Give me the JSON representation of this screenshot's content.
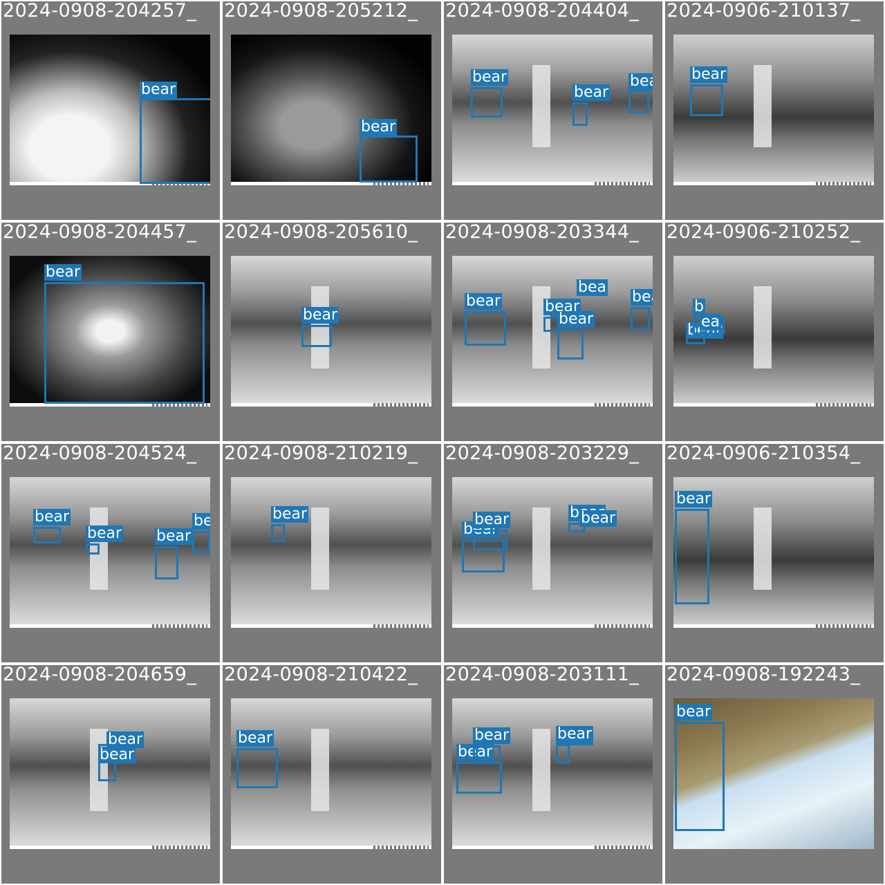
{
  "colors": {
    "tile_background": "#7a7a7a",
    "box_color": "#1f77b4",
    "label_text": "#ffffff"
  },
  "tiles": [
    {
      "title": "2024-0908-204257_",
      "scene": "night-bush",
      "detections": [
        {
          "label": "bear"
        }
      ]
    },
    {
      "title": "2024-0908-205212_",
      "scene": "night-bush-dark",
      "detections": [
        {
          "label": "bear"
        }
      ]
    },
    {
      "title": "2024-0908-204404_",
      "scene": "night-tree",
      "detections": [
        {
          "label": "bear"
        },
        {
          "label": "bear"
        },
        {
          "label": "bea"
        }
      ]
    },
    {
      "title": "2024-0906-210137_",
      "scene": "night-tree-grey",
      "detections": [
        {
          "label": "bear"
        }
      ]
    },
    {
      "title": "2024-0908-204457_",
      "scene": "night-closeup",
      "detections": [
        {
          "label": "bear"
        }
      ]
    },
    {
      "title": "2024-0908-205610_",
      "scene": "night-tree",
      "detections": [
        {
          "label": "bear"
        }
      ]
    },
    {
      "title": "2024-0908-203344_",
      "scene": "night-tree",
      "detections": [
        {
          "label": "bear"
        },
        {
          "label": "bear"
        },
        {
          "label": "bear"
        },
        {
          "label": "bear"
        },
        {
          "label": "bea"
        }
      ]
    },
    {
      "title": "2024-0906-210252_",
      "scene": "night-tree-grey",
      "detections": [
        {
          "label": "bear"
        },
        {
          "label": "b"
        },
        {
          "label": "ea"
        }
      ]
    },
    {
      "title": "2024-0908-204524_",
      "scene": "night-tree",
      "detections": [
        {
          "label": "bear"
        },
        {
          "label": "bear"
        },
        {
          "label": "bear"
        },
        {
          "label": "bea"
        }
      ]
    },
    {
      "title": "2024-0908-210219_",
      "scene": "night-tree",
      "detections": [
        {
          "label": "bear"
        }
      ]
    },
    {
      "title": "2024-0908-203229_",
      "scene": "night-tree",
      "detections": [
        {
          "label": "bear"
        },
        {
          "label": "bear"
        },
        {
          "label": "bear"
        },
        {
          "label": "bear"
        }
      ]
    },
    {
      "title": "2024-0906-210354_",
      "scene": "night-tree-grey",
      "detections": [
        {
          "label": "bear"
        }
      ]
    },
    {
      "title": "2024-0908-204659_",
      "scene": "night-tree",
      "detections": [
        {
          "label": "bear"
        },
        {
          "label": "bear"
        }
      ]
    },
    {
      "title": "2024-0908-210422_",
      "scene": "night-tree",
      "detections": [
        {
          "label": "bear"
        }
      ]
    },
    {
      "title": "2024-0908-203111_",
      "scene": "night-tree",
      "detections": [
        {
          "label": "bear"
        },
        {
          "label": "bear"
        },
        {
          "label": "bear"
        },
        {
          "label": "bear"
        }
      ]
    },
    {
      "title": "2024-0908-192243_",
      "scene": "day-hillside",
      "detections": [
        {
          "label": "bear"
        }
      ]
    }
  ]
}
